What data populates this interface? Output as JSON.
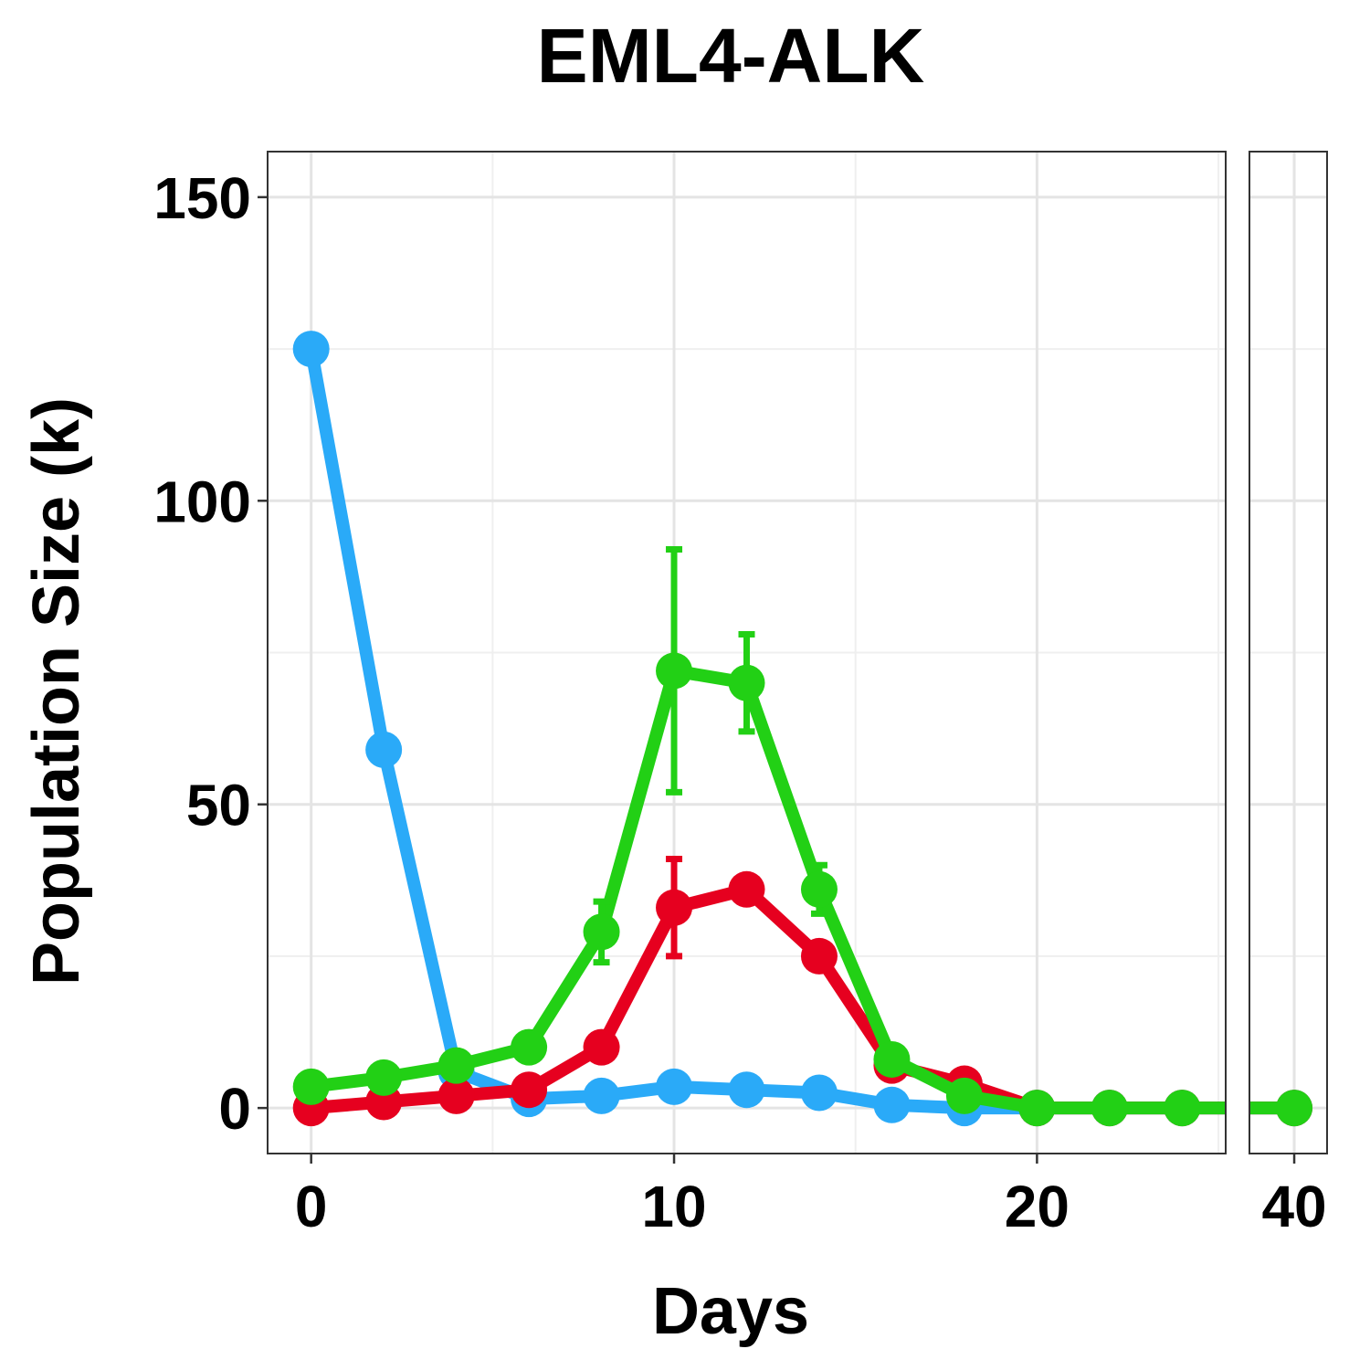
{
  "chart_data": {
    "type": "line",
    "title": "EML4-ALK",
    "xlabel": "Days",
    "ylabel": "Population Size (k)",
    "ylim": [
      -7.5,
      157.5
    ],
    "y_ticks": [
      0,
      50,
      100,
      150
    ],
    "grid": true,
    "legend": "none",
    "panels": [
      {
        "name": "main",
        "xlim": [
          -1.2,
          25.2
        ],
        "x_ticks": [
          0,
          10,
          20
        ],
        "x_minor": [
          5,
          15,
          25
        ]
      },
      {
        "name": "late",
        "xlim": [
          38.5,
          41.1
        ],
        "x_ticks": [
          40
        ],
        "x_minor": []
      }
    ],
    "series": [
      {
        "color": "#2aaaf8",
        "x": [
          0,
          2,
          4,
          6,
          8,
          10,
          12,
          14,
          16,
          18,
          20,
          22,
          24,
          40
        ],
        "y": [
          125,
          59,
          6,
          1.5,
          2,
          3.5,
          3,
          2.5,
          0.5,
          0,
          0,
          0,
          0,
          0
        ],
        "err": [
          0.5,
          2,
          0.5,
          0.3,
          0.3,
          0.5,
          0.5,
          0.5,
          0.3,
          0,
          0,
          0,
          0,
          0
        ]
      },
      {
        "color": "#e6001f",
        "x": [
          0,
          2,
          4,
          6,
          8,
          10,
          12,
          14,
          16,
          18,
          20,
          22,
          24,
          40
        ],
        "y": [
          0,
          1,
          2,
          3,
          10,
          33,
          36,
          25,
          7,
          4,
          0,
          0,
          0,
          0
        ],
        "err": [
          0,
          0.3,
          0.3,
          0.3,
          1,
          8,
          2,
          1,
          0.5,
          0.5,
          0,
          0,
          0,
          0
        ]
      },
      {
        "color": "#22d015",
        "x": [
          0,
          2,
          4,
          6,
          8,
          10,
          12,
          14,
          16,
          18,
          20,
          22,
          24,
          40
        ],
        "y": [
          3.5,
          5,
          7,
          10,
          29,
          72,
          70,
          36,
          8,
          2,
          0,
          0,
          0,
          0
        ],
        "err": [
          0.3,
          0.3,
          0.5,
          0.5,
          5,
          20,
          8,
          4,
          0.5,
          0.3,
          0,
          0,
          0,
          0
        ]
      }
    ]
  }
}
